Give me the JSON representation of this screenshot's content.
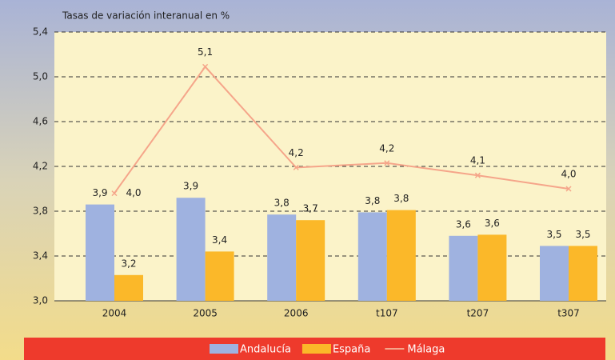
{
  "chart_data": {
    "type": "bar_line",
    "title": "Tasas de variación interanual en %",
    "categories": [
      "2004",
      "2005",
      "2006",
      "t107",
      "t207",
      "t307"
    ],
    "series": [
      {
        "name": "Andalucía",
        "type": "bar",
        "color": "#9fb2e0",
        "values": [
          3.86,
          3.92,
          3.77,
          3.79,
          3.58,
          3.49
        ],
        "value_labels": [
          "3,9",
          "3,9",
          "3,8",
          "3,8",
          "3,6",
          "3,5"
        ]
      },
      {
        "name": "España",
        "type": "bar",
        "color": "#fbb829",
        "values": [
          3.23,
          3.44,
          3.72,
          3.81,
          3.59,
          3.49
        ],
        "value_labels": [
          "3,2",
          "3,4",
          "3,7",
          "3,8",
          "3,6",
          "3,5"
        ]
      },
      {
        "name": "Málaga",
        "type": "line",
        "color": "#f5a58a",
        "values": [
          3.96,
          5.09,
          4.19,
          4.23,
          4.12,
          4.0
        ],
        "value_labels": [
          "4,0",
          "5,1",
          "4,2",
          "4,2",
          "4,1",
          "4,0"
        ]
      }
    ],
    "ylim": [
      3.0,
      5.4
    ],
    "yticks": [
      {
        "value": 3.0,
        "label": "3,0"
      },
      {
        "value": 3.4,
        "label": "3,4"
      },
      {
        "value": 3.8,
        "label": "3,8"
      },
      {
        "value": 4.2,
        "label": "4,2"
      },
      {
        "value": 4.6,
        "label": "4,6"
      },
      {
        "value": 5.0,
        "label": "5,0"
      },
      {
        "value": 5.4,
        "label": "5,4"
      }
    ],
    "grid": true,
    "legend": "bottom"
  }
}
